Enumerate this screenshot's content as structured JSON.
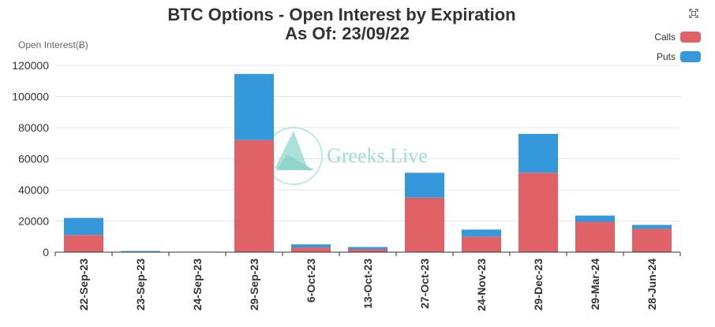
{
  "toolbar": {
    "expand_icon": "expand-icon"
  },
  "watermark": {
    "text": "Greeks.Live"
  },
  "chart_data": {
    "type": "bar",
    "stacked": true,
    "title": "BTC Options - Open Interest by Expiration",
    "subtitle": "As Of: 23/09/22",
    "ylabel": "Open Interest(Ƀ)",
    "xlabel": "",
    "ylim": [
      0,
      120000
    ],
    "yticks": [
      0,
      20000,
      40000,
      60000,
      80000,
      100000,
      120000
    ],
    "ytick_labels": [
      "0",
      "20000",
      "40000",
      "60000",
      "80000",
      "100000",
      "120000"
    ],
    "grid": true,
    "legend_position": "top-right",
    "categories": [
      "22-Sep-23",
      "23-Sep-23",
      "24-Sep-23",
      "29-Sep-23",
      "6-Oct-23",
      "13-Oct-23",
      "27-Oct-23",
      "24-Nov-23",
      "29-Dec-23",
      "29-Mar-24",
      "28-Jun-24"
    ],
    "series": [
      {
        "name": "Calls",
        "color": "#e06166",
        "values": [
          11000,
          400,
          200,
          72000,
          3000,
          1800,
          35000,
          10000,
          51000,
          19500,
          15000
        ]
      },
      {
        "name": "Puts",
        "color": "#3498db",
        "values": [
          11000,
          300,
          100,
          42500,
          2000,
          1500,
          16000,
          4500,
          25000,
          4000,
          2500
        ]
      }
    ]
  }
}
